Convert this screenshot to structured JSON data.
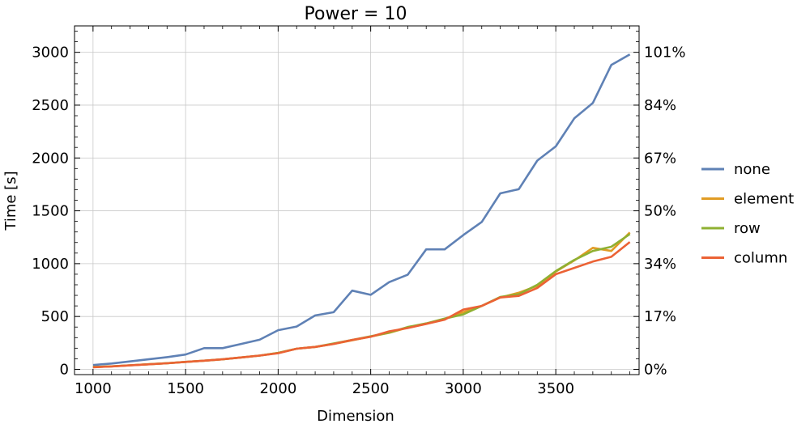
{
  "chart_data": {
    "type": "line",
    "title": "Power = 10",
    "xlabel": "Dimension",
    "ylabel": "Time [s]",
    "xlim": [
      900,
      3950
    ],
    "ylim": [
      -50,
      3250
    ],
    "x_ticks": [
      1000,
      1500,
      2000,
      2500,
      3000,
      3500
    ],
    "y_ticks": [
      0,
      500,
      1000,
      1500,
      2000,
      2500,
      3000
    ],
    "y2_ticks": [
      {
        "value": 0,
        "label": "0%"
      },
      {
        "value": 500,
        "label": "17%"
      },
      {
        "value": 1000,
        "label": "34%"
      },
      {
        "value": 1500,
        "label": "50%"
      },
      {
        "value": 2000,
        "label": "67%"
      },
      {
        "value": 2500,
        "label": "84%"
      },
      {
        "value": 3000,
        "label": "101%"
      }
    ],
    "grid": true,
    "legend_position": "right",
    "x": [
      1000,
      1100,
      1200,
      1300,
      1400,
      1500,
      1600,
      1700,
      1800,
      1900,
      2000,
      2100,
      2200,
      2300,
      2400,
      2500,
      2600,
      2700,
      2800,
      2900,
      3000,
      3100,
      3200,
      3300,
      3400,
      3500,
      3600,
      3700,
      3800,
      3900
    ],
    "series": [
      {
        "name": "none",
        "color": "#5f81b5",
        "values": [
          40,
          55,
          75,
          95,
          115,
          140,
          200,
          200,
          240,
          280,
          370,
          405,
          510,
          540,
          745,
          705,
          825,
          895,
          1135,
          1135,
          1270,
          1395,
          1665,
          1705,
          1975,
          2110,
          2375,
          2520,
          2880,
          2980
        ]
      },
      {
        "name": "element",
        "color": "#e19c24",
        "values": [
          22,
          28,
          38,
          48,
          58,
          70,
          82,
          95,
          112,
          130,
          155,
          195,
          212,
          240,
          275,
          310,
          345,
          395,
          430,
          478,
          540,
          600,
          680,
          725,
          790,
          925,
          1030,
          1150,
          1120,
          1295
        ]
      },
      {
        "name": "row",
        "color": "#8fb032",
        "values": [
          22,
          28,
          38,
          48,
          58,
          70,
          82,
          95,
          112,
          130,
          155,
          195,
          212,
          245,
          278,
          312,
          348,
          400,
          435,
          480,
          520,
          600,
          685,
          710,
          800,
          930,
          1035,
          1120,
          1160,
          1280
        ]
      },
      {
        "name": "column",
        "color": "#eb6235",
        "values": [
          20,
          27,
          37,
          47,
          57,
          70,
          82,
          95,
          112,
          130,
          152,
          195,
          212,
          240,
          278,
          308,
          360,
          390,
          430,
          470,
          565,
          600,
          680,
          695,
          770,
          900,
          960,
          1020,
          1065,
          1205
        ]
      }
    ]
  }
}
